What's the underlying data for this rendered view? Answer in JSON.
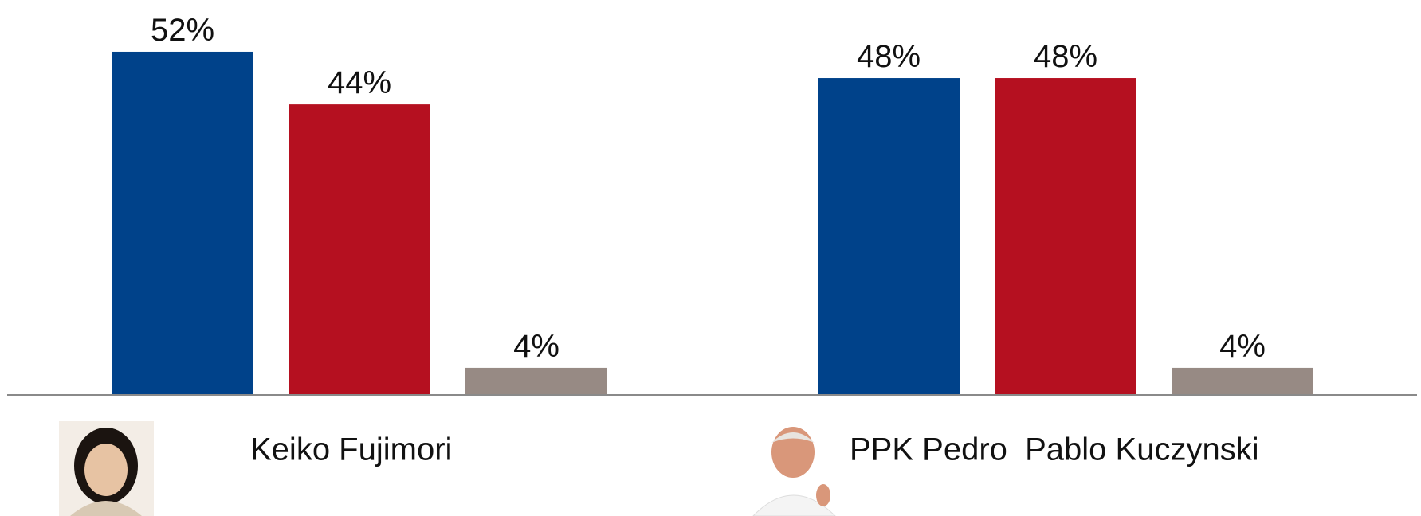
{
  "chart_data": {
    "type": "bar",
    "categories": [
      "Keiko Fujimori",
      "PPK Pedro  Pablo Kuczynski"
    ],
    "series": [
      {
        "color": "#00428a",
        "values": [
          52,
          48
        ],
        "value_labels": [
          "52%",
          "48%"
        ]
      },
      {
        "color": "#b51020",
        "values": [
          44,
          48
        ],
        "value_labels": [
          "44%",
          "48%"
        ]
      },
      {
        "color": "#978a84",
        "values": [
          4,
          4
        ],
        "value_labels": [
          "4%",
          "4%"
        ]
      }
    ]
  }
}
